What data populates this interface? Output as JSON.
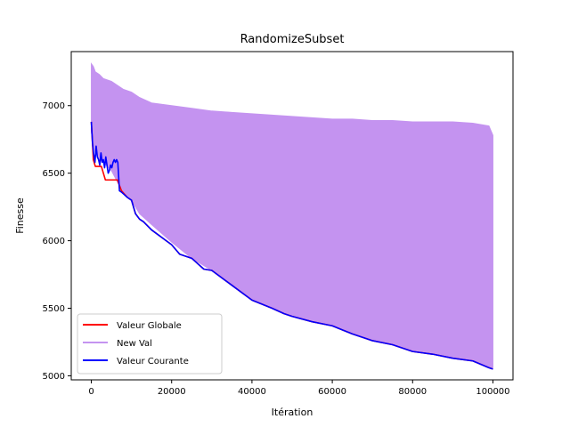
{
  "chart_data": {
    "type": "line",
    "title": "RandomizeSubset",
    "xlabel": "Itération",
    "ylabel": "Finesse",
    "xlim": [
      -5000,
      105000
    ],
    "ylim": [
      4970,
      7400
    ],
    "xticks": [
      0,
      20000,
      40000,
      60000,
      80000,
      100000
    ],
    "xtick_labels": [
      "0",
      "20000",
      "40000",
      "60000",
      "80000",
      "100000"
    ],
    "yticks": [
      5000,
      5500,
      6000,
      6500,
      7000
    ],
    "ytick_labels": [
      "5000",
      "5500",
      "6000",
      "6500",
      "7000"
    ],
    "grid": false,
    "legend_position": "lower-left",
    "series": [
      {
        "name": "New Val",
        "color": "#c493f0",
        "style": "band",
        "x": [
          0,
          500,
          1000,
          2000,
          3000,
          5000,
          8000,
          10000,
          12000,
          15000,
          20000,
          25000,
          30000,
          35000,
          40000,
          45000,
          50000,
          55000,
          60000,
          65000,
          70000,
          75000,
          80000,
          85000,
          90000,
          95000,
          99000,
          100000
        ],
        "upper": [
          7310,
          7290,
          7250,
          7230,
          7200,
          7180,
          7120,
          7100,
          7060,
          7020,
          7000,
          6980,
          6960,
          6950,
          6940,
          6930,
          6920,
          6910,
          6900,
          6900,
          6890,
          6890,
          6880,
          6880,
          6880,
          6870,
          6850,
          6780
        ],
        "lower": [
          6800,
          6720,
          6650,
          6600,
          6580,
          6520,
          6350,
          6300,
          6200,
          6120,
          5990,
          5870,
          5780,
          5670,
          5560,
          5500,
          5440,
          5400,
          5370,
          5320,
          5260,
          5230,
          5180,
          5160,
          5130,
          5110,
          5060,
          5060
        ]
      },
      {
        "name": "Valeur Globale",
        "color": "#ff0000",
        "x": [
          0,
          500,
          1000,
          1500,
          2500,
          3500,
          5000,
          6500,
          7500,
          9000,
          10000,
          11000,
          12000,
          13000,
          15000,
          20000,
          22000,
          25000,
          28000,
          30000,
          35000,
          40000,
          45000,
          48000,
          50000,
          55000,
          60000,
          65000,
          70000,
          75000,
          80000,
          85000,
          90000,
          95000,
          99000,
          100000
        ],
        "values": [
          6880,
          6600,
          6550,
          6550,
          6550,
          6450,
          6450,
          6450,
          6370,
          6320,
          6300,
          6200,
          6160,
          6140,
          6080,
          5970,
          5900,
          5870,
          5790,
          5780,
          5670,
          5560,
          5500,
          5460,
          5440,
          5400,
          5370,
          5310,
          5260,
          5230,
          5180,
          5160,
          5130,
          5110,
          5060,
          5050
        ]
      },
      {
        "name": "Valeur Courante",
        "color": "#0000ff",
        "x": [
          0,
          300,
          600,
          900,
          1200,
          1500,
          1800,
          2100,
          2400,
          2700,
          3000,
          3300,
          3600,
          3900,
          4200,
          4500,
          4800,
          5100,
          5400,
          5700,
          6000,
          6300,
          6600,
          7000,
          7500,
          9000,
          10000,
          11000,
          12000,
          13000,
          15000,
          20000,
          22000,
          25000,
          28000,
          30000,
          35000,
          40000,
          45000,
          48000,
          50000,
          55000,
          60000,
          65000,
          70000,
          75000,
          80000,
          85000,
          90000,
          95000,
          99000,
          100000
        ],
        "values": [
          6880,
          6720,
          6640,
          6580,
          6700,
          6620,
          6600,
          6560,
          6650,
          6580,
          6600,
          6540,
          6620,
          6560,
          6500,
          6520,
          6560,
          6540,
          6580,
          6600,
          6580,
          6600,
          6580,
          6370,
          6360,
          6320,
          6300,
          6200,
          6160,
          6140,
          6080,
          5970,
          5900,
          5870,
          5790,
          5780,
          5670,
          5560,
          5500,
          5460,
          5440,
          5400,
          5370,
          5310,
          5260,
          5230,
          5180,
          5160,
          5130,
          5110,
          5060,
          5050
        ]
      }
    ]
  }
}
